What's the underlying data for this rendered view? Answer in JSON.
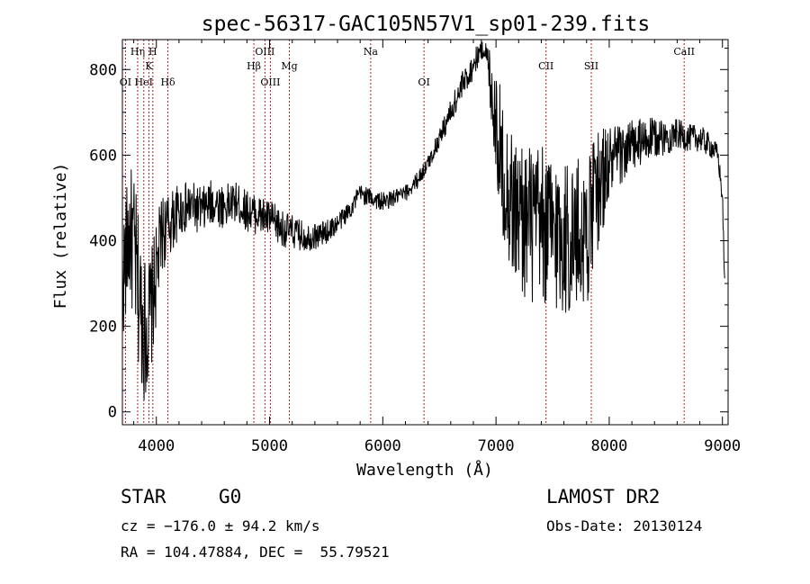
{
  "footer": {
    "class_label": "STAR",
    "subclass": "G0",
    "survey": "LAMOST DR2",
    "cz": "cz = −176.0 ± 94.2 km/s",
    "obs_date": "Obs-Date: 20130124",
    "coords": "RA = 104.47884, DEC =  55.79521"
  },
  "chart_data": {
    "type": "line",
    "title": "spec-56317-GAC105N57V1_sp01-239.fits",
    "xlabel": "Wavelength (Å)",
    "ylabel": "Flux (relative)",
    "xlim": [
      3700,
      9050
    ],
    "ylim": [
      -30,
      870
    ],
    "xticks": [
      4000,
      5000,
      6000,
      7000,
      8000,
      9000
    ],
    "yticks": [
      0,
      200,
      400,
      600,
      800
    ],
    "line_color": "#000000",
    "marker_color": "#b22222",
    "grid": false,
    "spectral_lines": [
      {
        "label": "OI",
        "x": 3727,
        "row": 3
      },
      {
        "label": "Hη",
        "x": 3835,
        "row": 1
      },
      {
        "label": "HeI",
        "x": 3889,
        "row": 3
      },
      {
        "label": "K",
        "x": 3934,
        "row": 2
      },
      {
        "label": "H",
        "x": 3969,
        "row": 1
      },
      {
        "label": "Hδ",
        "x": 4102,
        "row": 3
      },
      {
        "label": "Hβ",
        "x": 4861,
        "row": 2
      },
      {
        "label": "OIII",
        "x": 4959,
        "row": 1
      },
      {
        "label": "OIII",
        "x": 5007,
        "row": 3
      },
      {
        "label": "Mg",
        "x": 5175,
        "row": 2
      },
      {
        "label": "Na",
        "x": 5893,
        "row": 1
      },
      {
        "label": "OI",
        "x": 6364,
        "row": 3
      },
      {
        "label": "CII",
        "x": 7442,
        "row": 2
      },
      {
        "label": "SII",
        "x": 7842,
        "row": 2
      },
      {
        "label": "CaII",
        "x": 8662,
        "row": 1
      }
    ],
    "series": [
      {
        "x": [
          3700,
          3760,
          3800,
          3850,
          3900,
          3950,
          4000,
          4050,
          4100,
          4200,
          4300,
          4400,
          4500,
          4600,
          4700,
          4800,
          4900,
          5000,
          5100,
          5200,
          5300,
          5400,
          5500,
          5600,
          5700,
          5800,
          5900,
          6000,
          6100,
          6200,
          6300,
          6400,
          6500,
          6600,
          6700,
          6800,
          6850,
          6900,
          6950,
          7000,
          7050,
          7100,
          7150,
          7200,
          7300,
          7400,
          7500,
          7600,
          7700,
          7800,
          7900,
          8000,
          8100,
          8200,
          8300,
          8400,
          8500,
          8600,
          8700,
          8800,
          8900,
          8960,
          9000,
          9020
        ],
        "y": [
          300,
          420,
          380,
          260,
          190,
          230,
          320,
          420,
          430,
          470,
          480,
          470,
          490,
          480,
          490,
          470,
          460,
          450,
          430,
          420,
          410,
          410,
          420,
          440,
          470,
          510,
          500,
          490,
          500,
          510,
          540,
          580,
          640,
          700,
          760,
          810,
          840,
          850,
          780,
          680,
          580,
          520,
          480,
          460,
          440,
          430,
          420,
          410,
          405,
          420,
          520,
          580,
          600,
          620,
          630,
          640,
          640,
          650,
          640,
          640,
          620,
          600,
          500,
          300
        ],
        "noise": [
          180,
          200,
          220,
          230,
          220,
          180,
          150,
          120,
          100,
          80,
          75,
          70,
          70,
          65,
          60,
          60,
          60,
          60,
          55,
          50,
          45,
          40,
          35,
          30,
          30,
          30,
          28,
          28,
          25,
          25,
          25,
          25,
          30,
          40,
          45,
          40,
          35,
          30,
          100,
          180,
          200,
          210,
          220,
          230,
          240,
          240,
          240,
          240,
          240,
          220,
          180,
          120,
          90,
          80,
          70,
          60,
          50,
          45,
          40,
          40,
          35,
          30,
          30,
          20
        ]
      }
    ]
  }
}
